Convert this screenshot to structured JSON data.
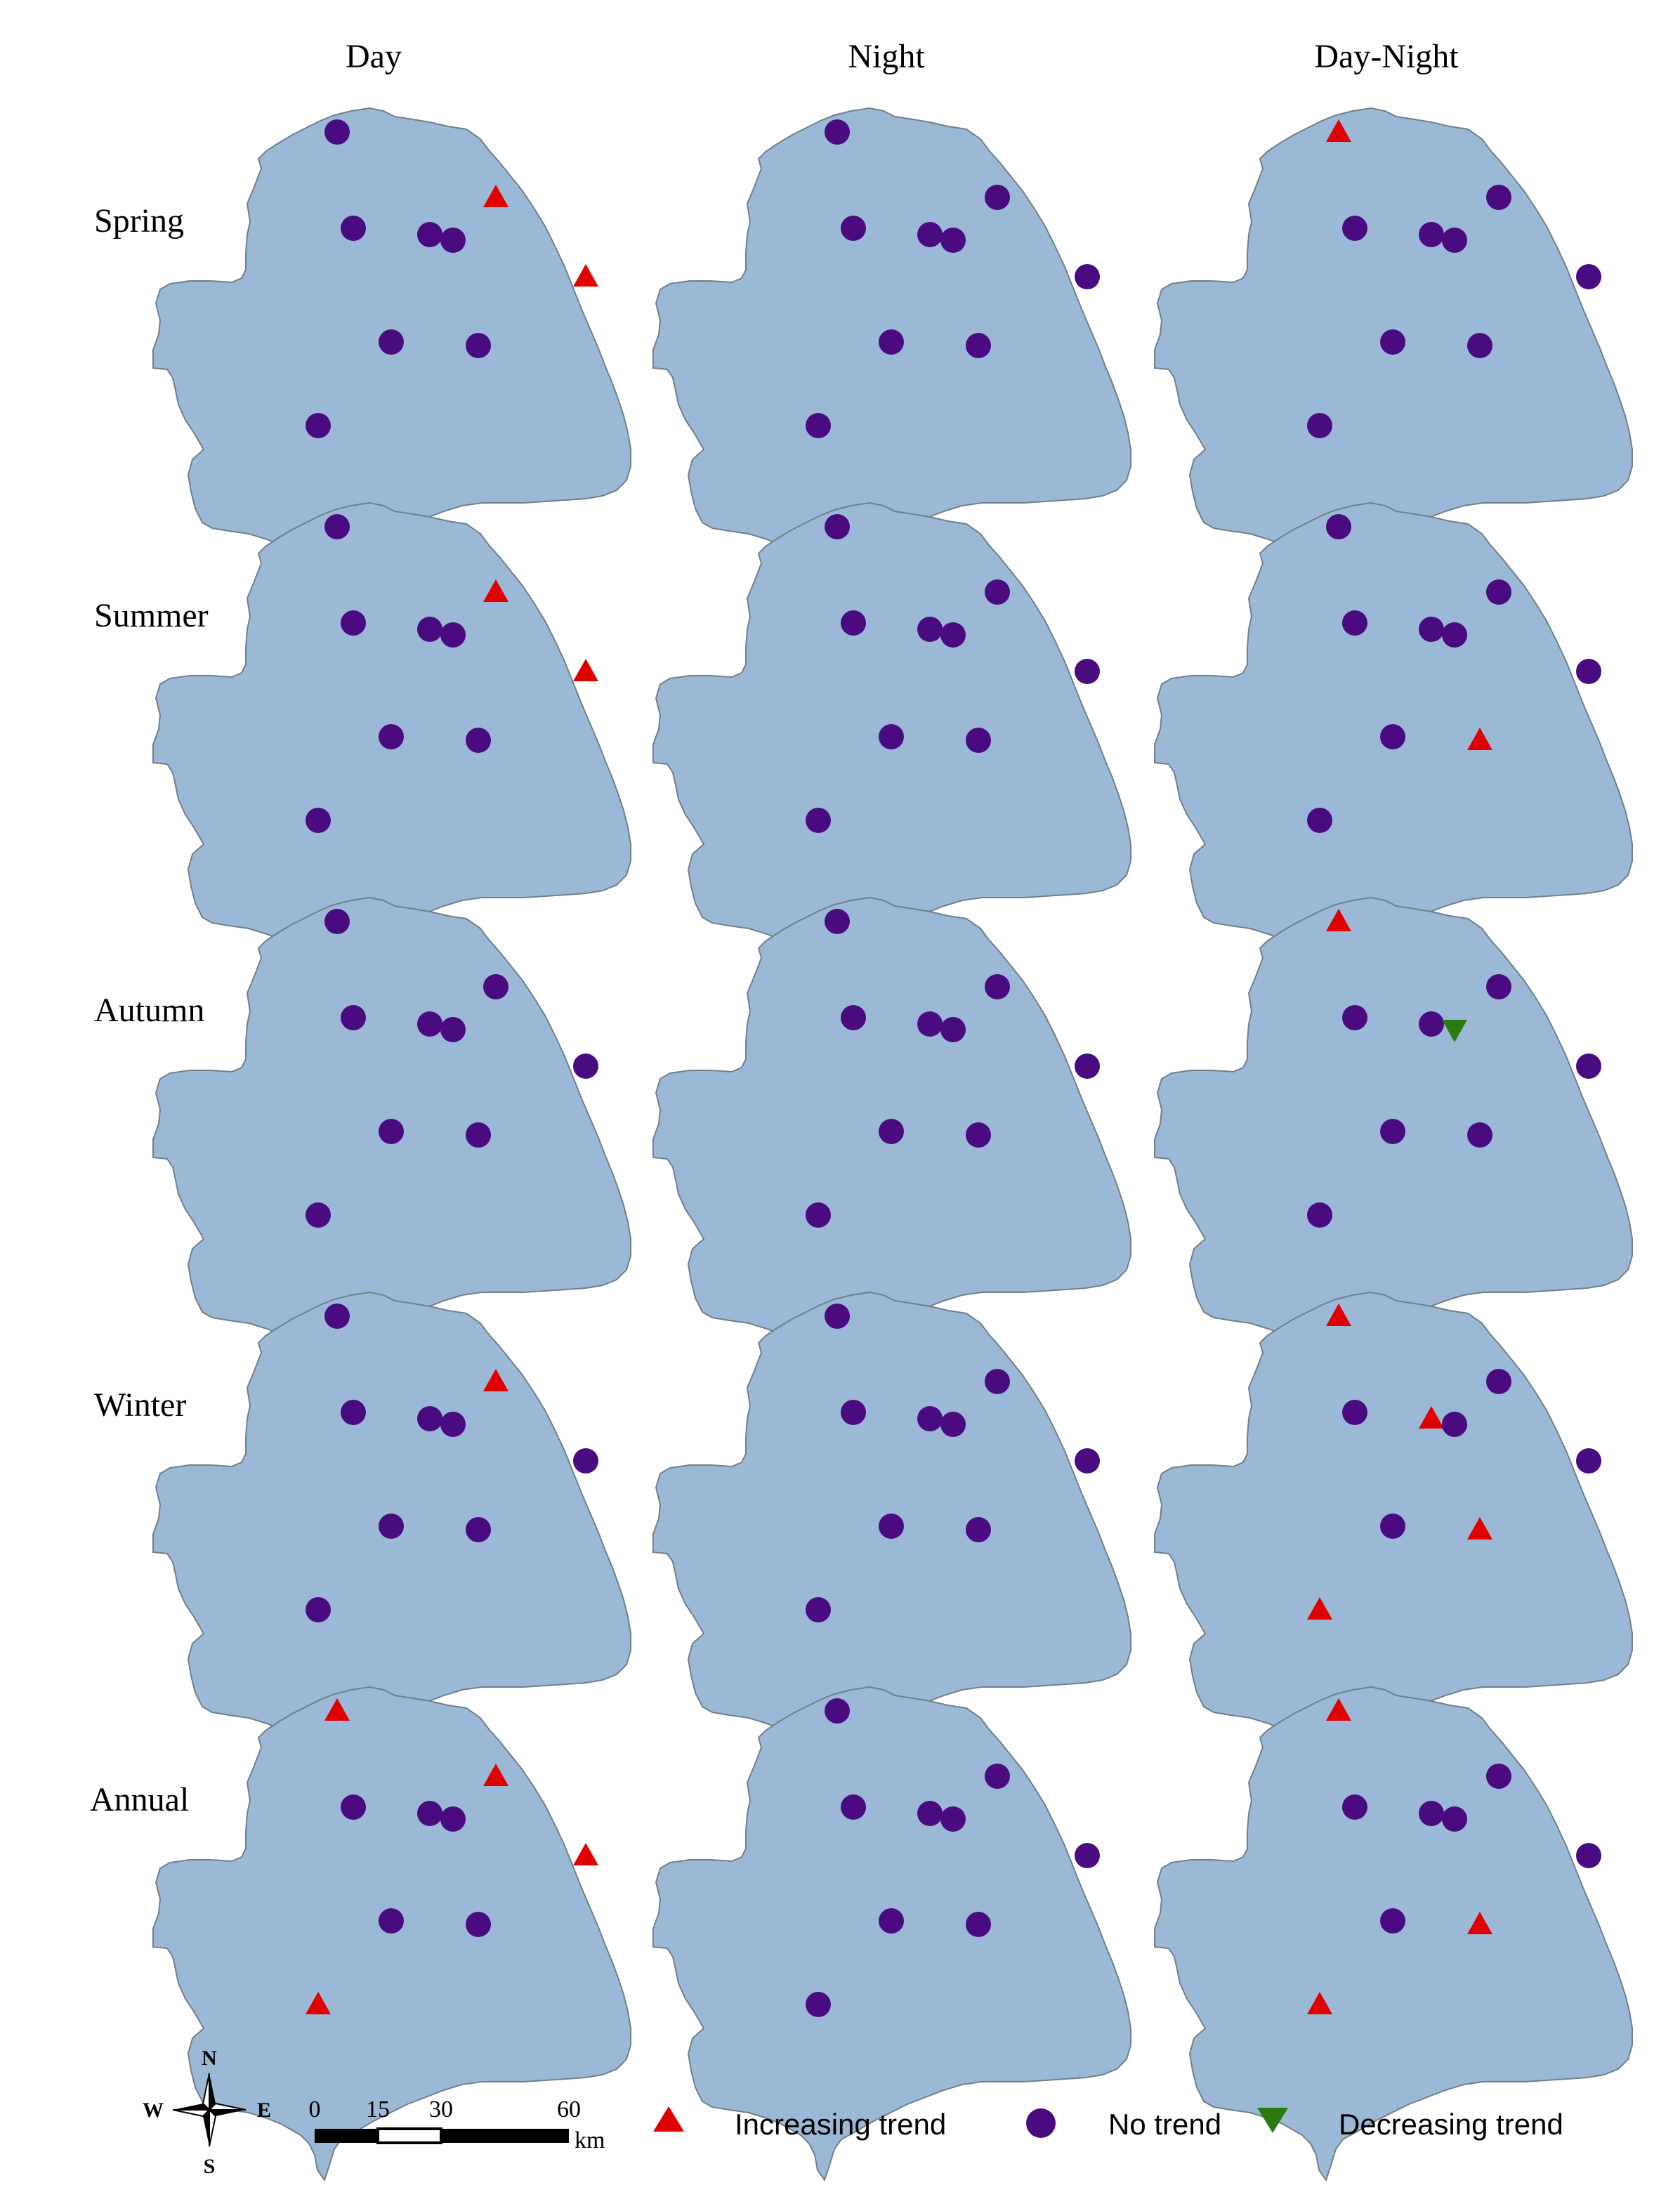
{
  "columns": [
    "Day",
    "Night",
    "Day-Night"
  ],
  "rows": [
    "Spring",
    "Summer",
    "Autumn",
    "Winter",
    "Annual"
  ],
  "colors": {
    "land": "#9bb9d6",
    "outline": "#6f7f8c",
    "increasing": "#e00000",
    "no_trend": "#4a0a80",
    "decreasing": "#2a7a10"
  },
  "stations": [
    "s1",
    "s2",
    "s3",
    "s4",
    "s5",
    "s6",
    "s7",
    "s8",
    "s9",
    "s10",
    "s11"
  ],
  "trends": {
    "Spring": [
      [
        "n",
        "i",
        "n",
        "n",
        "n",
        "i",
        "n",
        "n",
        "n",
        "n",
        "n"
      ],
      [
        "n",
        "n",
        "n",
        "n",
        "n",
        "n",
        "n",
        "n",
        "n",
        "n",
        "n"
      ],
      [
        "i",
        "i",
        "n",
        "n",
        "n",
        "n",
        "n",
        "n",
        "n",
        "n",
        "n"
      ]
    ],
    "Summer": [
      [
        "n",
        "i",
        "n",
        "n",
        "n",
        "i",
        "n",
        "n",
        "n",
        "n",
        "n"
      ],
      [
        "n",
        "n",
        "n",
        "n",
        "n",
        "n",
        "n",
        "n",
        "n",
        "n",
        "n"
      ],
      [
        "n",
        "n",
        "n",
        "n",
        "n",
        "n",
        "n",
        "n",
        "i",
        "n",
        "n"
      ]
    ],
    "Autumn": [
      [
        "n",
        "n",
        "n",
        "n",
        "n",
        "n",
        "n",
        "n",
        "n",
        "n",
        "n"
      ],
      [
        "n",
        "n",
        "n",
        "n",
        "n",
        "n",
        "n",
        "n",
        "n",
        "n",
        "n"
      ],
      [
        "i",
        "n",
        "n",
        "n",
        "d",
        "n",
        "n",
        "n",
        "n",
        "n",
        "n"
      ]
    ],
    "Winter": [
      [
        "n",
        "i",
        "n",
        "n",
        "n",
        "n",
        "n",
        "n",
        "n",
        "n",
        "n"
      ],
      [
        "n",
        "n",
        "n",
        "n",
        "n",
        "n",
        "n",
        "n",
        "n",
        "n",
        "n"
      ],
      [
        "i",
        "i",
        "n",
        "i",
        "n",
        "n",
        "n",
        "n",
        "i",
        "i",
        "n"
      ]
    ],
    "Annual": [
      [
        "i",
        "i",
        "n",
        "n",
        "n",
        "i",
        "n",
        "n",
        "n",
        "i",
        "n"
      ],
      [
        "n",
        "n",
        "n",
        "n",
        "n",
        "n",
        "n",
        "n",
        "n",
        "n",
        "n"
      ],
      [
        "i",
        "i",
        "n",
        "n",
        "n",
        "i",
        "n",
        "n",
        "i",
        "i",
        "n"
      ]
    ]
  },
  "compass": {
    "n": "N",
    "s": "S",
    "e": "E",
    "w": "W"
  },
  "scalebar": {
    "labels": [
      "0",
      "15",
      "30",
      "60"
    ],
    "unit": "km"
  },
  "legend": {
    "increasing": "Increasing trend",
    "no_trend": "No trend",
    "decreasing": "Decreasing trend"
  }
}
